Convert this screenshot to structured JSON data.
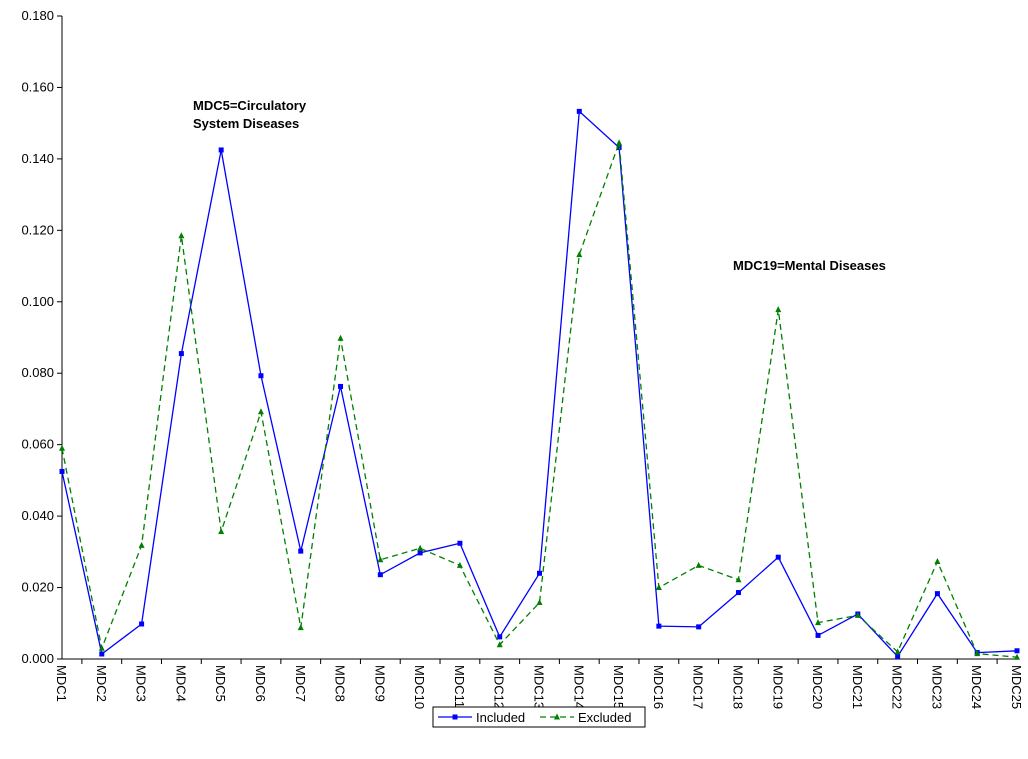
{
  "chart_data": {
    "type": "line",
    "title": "",
    "xlabel": "",
    "ylabel": "",
    "categories": [
      "MDC1",
      "MDC2",
      "MDC3",
      "MDC4",
      "MDC5",
      "MDC6",
      "MDC7",
      "MDC8",
      "MDC9",
      "MDC10",
      "MDC11",
      "MDC12",
      "MDC13",
      "MDC14",
      "MDC15",
      "MDC16",
      "MDC17",
      "MDC18",
      "MDC19",
      "MDC20",
      "MDC21",
      "MDC22",
      "MDC23",
      "MDC24",
      "MDC25"
    ],
    "ylim": [
      0,
      0.18
    ],
    "yticks": [
      "0.000",
      "0.020",
      "0.040",
      "0.060",
      "0.080",
      "0.100",
      "0.120",
      "0.140",
      "0.160",
      "0.180"
    ],
    "grid": false,
    "legend_position": "bottom-center",
    "series": [
      {
        "name": "Included",
        "color": "#0000ff",
        "line_style": "solid",
        "marker": "square",
        "values": [
          0.0525,
          0.0014,
          0.0098,
          0.0855,
          0.1425,
          0.0793,
          0.0302,
          0.0763,
          0.0236,
          0.0297,
          0.0324,
          0.0062,
          0.024,
          0.1533,
          0.1432,
          0.0092,
          0.009,
          0.0186,
          0.0285,
          0.0066,
          0.0126,
          0.0007,
          0.0183,
          0.0018,
          0.0023
        ]
      },
      {
        "name": "Excluded",
        "color": "#008000",
        "line_style": "dashed",
        "marker": "triangle",
        "values": [
          0.059,
          0.003,
          0.0318,
          0.1185,
          0.0357,
          0.0692,
          0.0088,
          0.0898,
          0.0278,
          0.031,
          0.0262,
          0.004,
          0.0158,
          0.1132,
          0.1445,
          0.02,
          0.0262,
          0.0222,
          0.0978,
          0.0102,
          0.0122,
          0.002,
          0.0273,
          0.0015,
          0.0005
        ]
      }
    ],
    "annotations": [
      {
        "id": "mdc5",
        "lines": [
          "MDC5=Circulatory",
          "System Diseases"
        ]
      },
      {
        "id": "mdc19",
        "lines": [
          "MDC19=Mental Diseases"
        ]
      }
    ]
  }
}
